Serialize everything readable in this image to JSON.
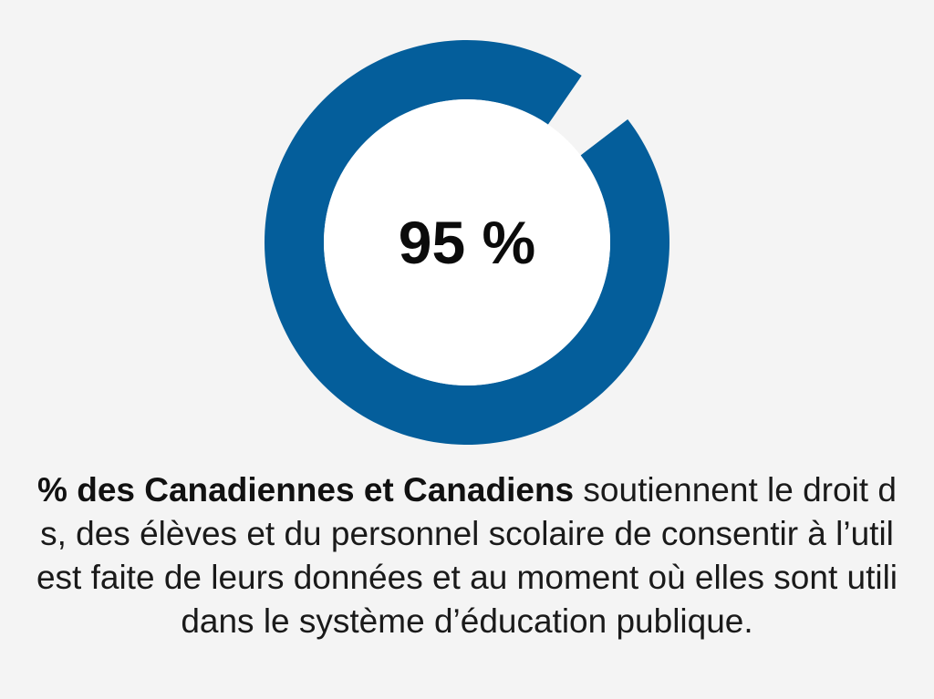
{
  "chart_data": {
    "type": "pie",
    "variant": "donut",
    "values": [
      95,
      5
    ],
    "center_label": "95 %",
    "slice_colors": [
      "#045e9b",
      "#f4f4f4"
    ]
  },
  "colors": {
    "background": "#f4f4f4",
    "ring": "#045e9b",
    "center_fill": "#ffffff",
    "text": "#1a1a1a"
  },
  "caption": {
    "line1_bold": "% des Canadiennes et Canadiens",
    "line1_rest": " soutiennent le droit d",
    "line2": "s, des élèves et du personnel scolaire de consentir à l’util",
    "line3": "est faite de leurs données et au moment où elles sont utili",
    "line4": "dans le système d’éducation publique."
  }
}
